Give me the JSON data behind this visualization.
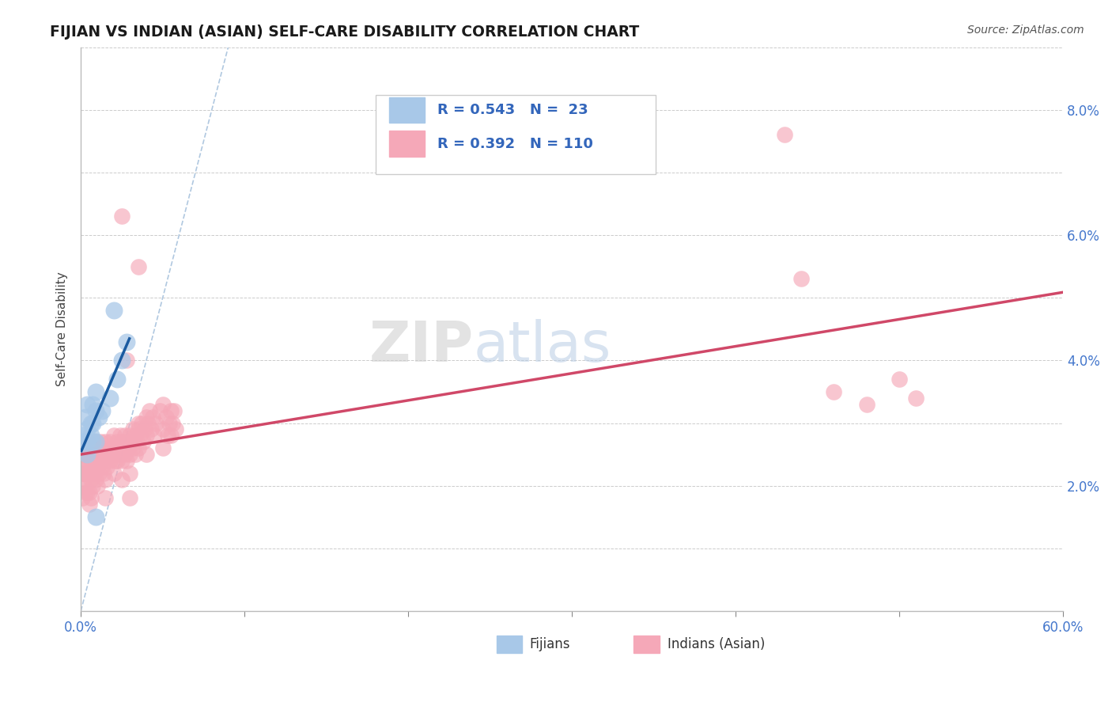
{
  "title": "FIJIAN VS INDIAN (ASIAN) SELF-CARE DISABILITY CORRELATION CHART",
  "source": "Source: ZipAtlas.com",
  "ylabel": "Self-Care Disability",
  "xlim": [
    0.0,
    0.6
  ],
  "ylim": [
    0.0,
    0.09
  ],
  "xtick_vals": [
    0.0,
    0.1,
    0.2,
    0.3,
    0.4,
    0.5,
    0.6
  ],
  "xticklabels": [
    "0.0%",
    "",
    "",
    "",
    "",
    "",
    "60.0%"
  ],
  "ytick_vals": [
    0.0,
    0.01,
    0.02,
    0.03,
    0.04,
    0.05,
    0.06,
    0.07,
    0.08,
    0.09
  ],
  "yticklabels_right": [
    "",
    "",
    "2.0%",
    "",
    "4.0%",
    "",
    "6.0%",
    "",
    "8.0%",
    ""
  ],
  "fijian_color": "#a8c8e8",
  "indian_color": "#f5a8b8",
  "fijian_line_color": "#1a5aa0",
  "indian_line_color": "#d04868",
  "diagonal_color": "#b0c8e0",
  "R_fijian": 0.543,
  "N_fijian": 23,
  "R_indian": 0.392,
  "N_indian": 110,
  "fijian_points": [
    [
      0.001,
      0.027
    ],
    [
      0.001,
      0.028
    ],
    [
      0.003,
      0.031
    ],
    [
      0.004,
      0.033
    ],
    [
      0.004,
      0.029
    ],
    [
      0.004,
      0.027
    ],
    [
      0.004,
      0.025
    ],
    [
      0.006,
      0.03
    ],
    [
      0.006,
      0.028
    ],
    [
      0.007,
      0.033
    ],
    [
      0.007,
      0.03
    ],
    [
      0.007,
      0.027
    ],
    [
      0.009,
      0.035
    ],
    [
      0.009,
      0.032
    ],
    [
      0.009,
      0.027
    ],
    [
      0.011,
      0.031
    ],
    [
      0.013,
      0.032
    ],
    [
      0.018,
      0.034
    ],
    [
      0.022,
      0.037
    ],
    [
      0.02,
      0.048
    ],
    [
      0.025,
      0.04
    ],
    [
      0.028,
      0.043
    ],
    [
      0.009,
      0.015
    ]
  ],
  "indian_points": [
    [
      0.001,
      0.022
    ],
    [
      0.001,
      0.025
    ],
    [
      0.001,
      0.02
    ],
    [
      0.001,
      0.018
    ],
    [
      0.002,
      0.024
    ],
    [
      0.002,
      0.022
    ],
    [
      0.002,
      0.02
    ],
    [
      0.003,
      0.024
    ],
    [
      0.003,
      0.022
    ],
    [
      0.003,
      0.019
    ],
    [
      0.004,
      0.026
    ],
    [
      0.004,
      0.022
    ],
    [
      0.004,
      0.019
    ],
    [
      0.004,
      0.024
    ],
    [
      0.005,
      0.025
    ],
    [
      0.005,
      0.022
    ],
    [
      0.005,
      0.019
    ],
    [
      0.005,
      0.017
    ],
    [
      0.006,
      0.024
    ],
    [
      0.006,
      0.021
    ],
    [
      0.006,
      0.018
    ],
    [
      0.007,
      0.026
    ],
    [
      0.007,
      0.023
    ],
    [
      0.007,
      0.02
    ],
    [
      0.008,
      0.025
    ],
    [
      0.008,
      0.022
    ],
    [
      0.009,
      0.027
    ],
    [
      0.009,
      0.024
    ],
    [
      0.009,
      0.021
    ],
    [
      0.01,
      0.026
    ],
    [
      0.01,
      0.023
    ],
    [
      0.01,
      0.02
    ],
    [
      0.011,
      0.025
    ],
    [
      0.011,
      0.022
    ],
    [
      0.012,
      0.027
    ],
    [
      0.012,
      0.024
    ],
    [
      0.013,
      0.026
    ],
    [
      0.013,
      0.023
    ],
    [
      0.014,
      0.025
    ],
    [
      0.014,
      0.022
    ],
    [
      0.015,
      0.027
    ],
    [
      0.015,
      0.024
    ],
    [
      0.015,
      0.021
    ],
    [
      0.015,
      0.018
    ],
    [
      0.016,
      0.026
    ],
    [
      0.016,
      0.023
    ],
    [
      0.017,
      0.025
    ],
    [
      0.018,
      0.027
    ],
    [
      0.018,
      0.024
    ],
    [
      0.019,
      0.026
    ],
    [
      0.02,
      0.028
    ],
    [
      0.02,
      0.025
    ],
    [
      0.02,
      0.022
    ],
    [
      0.021,
      0.024
    ],
    [
      0.022,
      0.027
    ],
    [
      0.022,
      0.024
    ],
    [
      0.023,
      0.026
    ],
    [
      0.024,
      0.028
    ],
    [
      0.024,
      0.025
    ],
    [
      0.025,
      0.027
    ],
    [
      0.025,
      0.024
    ],
    [
      0.025,
      0.021
    ],
    [
      0.026,
      0.026
    ],
    [
      0.027,
      0.028
    ],
    [
      0.027,
      0.025
    ],
    [
      0.028,
      0.027
    ],
    [
      0.028,
      0.024
    ],
    [
      0.029,
      0.026
    ],
    [
      0.03,
      0.028
    ],
    [
      0.03,
      0.025
    ],
    [
      0.03,
      0.022
    ],
    [
      0.031,
      0.027
    ],
    [
      0.032,
      0.029
    ],
    [
      0.032,
      0.026
    ],
    [
      0.033,
      0.028
    ],
    [
      0.033,
      0.025
    ],
    [
      0.034,
      0.027
    ],
    [
      0.035,
      0.029
    ],
    [
      0.035,
      0.026
    ],
    [
      0.036,
      0.028
    ],
    [
      0.037,
      0.03
    ],
    [
      0.038,
      0.027
    ],
    [
      0.039,
      0.029
    ],
    [
      0.04,
      0.031
    ],
    [
      0.04,
      0.028
    ],
    [
      0.04,
      0.025
    ],
    [
      0.041,
      0.03
    ],
    [
      0.042,
      0.032
    ],
    [
      0.043,
      0.029
    ],
    [
      0.044,
      0.031
    ],
    [
      0.045,
      0.028
    ],
    [
      0.046,
      0.03
    ],
    [
      0.048,
      0.032
    ],
    [
      0.05,
      0.029
    ],
    [
      0.05,
      0.033
    ],
    [
      0.05,
      0.026
    ],
    [
      0.052,
      0.031
    ],
    [
      0.053,
      0.028
    ],
    [
      0.054,
      0.03
    ],
    [
      0.055,
      0.032
    ],
    [
      0.055,
      0.028
    ],
    [
      0.056,
      0.03
    ],
    [
      0.057,
      0.032
    ],
    [
      0.058,
      0.029
    ],
    [
      0.028,
      0.04
    ],
    [
      0.035,
      0.03
    ],
    [
      0.03,
      0.018
    ],
    [
      0.035,
      0.055
    ],
    [
      0.025,
      0.063
    ],
    [
      0.43,
      0.076
    ],
    [
      0.44,
      0.053
    ],
    [
      0.46,
      0.035
    ],
    [
      0.48,
      0.033
    ],
    [
      0.5,
      0.037
    ],
    [
      0.51,
      0.034
    ]
  ],
  "watermark": "ZIPatlas",
  "legend_label_fijian": "Fijians",
  "legend_label_indian": "Indians (Asian)"
}
